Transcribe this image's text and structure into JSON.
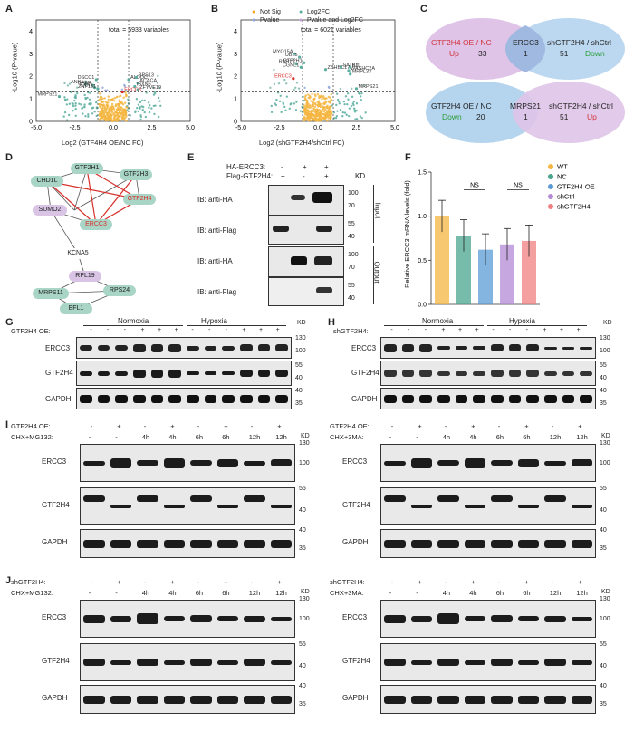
{
  "panels": {
    "A": {
      "label": "A",
      "total": "total = 5933 variables",
      "ylabel": "-Log10 (P-value)",
      "xlabel": "Log2 (GTF4H4 OE/NC FC)",
      "genes": [
        "DSCC1",
        "ANK1",
        "GFER",
        "EXN1",
        "ZNF131",
        "ALDOC",
        "RPS13",
        "ACACA",
        "IBXN6",
        "ZFYVE19",
        "ERCC3",
        "MRPS21"
      ]
    },
    "B": {
      "label": "B",
      "total": "total = 6021 variables",
      "ylabel": "-Log10 (P-value)",
      "xlabel": "Log2 (shGTF2H4/shCtrl FC)",
      "legend": [
        "Not Sig",
        "Pvalue",
        "Log2FC",
        "Pvalue and Log2FC"
      ],
      "genes": [
        "MYO15A",
        "UBL5",
        "GTF2H1",
        "RAB17",
        "CGNL1",
        "ZBHBC17",
        "SATB1",
        "ID1",
        "WASHC2A",
        "MRPL33",
        "ERCC3",
        "MRPS21"
      ]
    },
    "C": {
      "label": "C",
      "top": {
        "left_title": "GTF2H4 OE / NC",
        "left_dir": "Up",
        "left_n": "33",
        "mid": "ERCC3",
        "mid_n": "1",
        "right_title": "shGTF2H4 / shCtrl",
        "right_dir": "Down",
        "right_n": "51"
      },
      "bottom": {
        "left_title": "GTF2H4 OE / NC",
        "left_dir": "Down",
        "left_n": "20",
        "mid": "MRPS21",
        "mid_n": "1",
        "right_title": "shGTF2H4 / shCtrl",
        "right_dir": "Up",
        "right_n": "51"
      }
    },
    "D": {
      "label": "D",
      "nodes": [
        "GTF2H1",
        "GTF2H3",
        "CHD1L",
        "GTF2H4",
        "SUMO2",
        "ERCC3",
        "KCNA5",
        "RPL19",
        "MRPS11",
        "RPS24",
        "EFL1"
      ]
    },
    "E": {
      "label": "E",
      "row1": "HA-ERCC3:",
      "row2": "Flag-GTF2H4:",
      "row1_vals": [
        "-",
        "+",
        "+"
      ],
      "row2_vals": [
        "+",
        "-",
        "+"
      ],
      "kd": "KD",
      "blots": [
        "IB:  anti-HA",
        "IB:  anti-Flag",
        "IB:  anti-HA",
        "IB:  anti-Flag"
      ],
      "input": "Input",
      "output": "Output",
      "markers": [
        "100",
        "70",
        "55",
        "40",
        "100",
        "70",
        "55",
        "40"
      ]
    },
    "F": {
      "label": "F",
      "ylabel": "Relative ERCC3 mRNA levels (fold)",
      "ns": "NS"
    },
    "G": {
      "label": "G",
      "normoxia": "Normoxia",
      "hypoxia": "Hypoxia",
      "row": "GTF2H4 OE:",
      "vals": [
        "-",
        "-",
        "-",
        "+",
        "+",
        "+",
        "-",
        "-",
        "-",
        "+",
        "+",
        "+"
      ],
      "blots": [
        "ERCC3",
        "GTF2H4",
        "GAPDH"
      ],
      "kd": "KD",
      "markers": [
        "130",
        "100",
        "55",
        "40",
        "40",
        "35"
      ]
    },
    "H": {
      "label": "H",
      "normoxia": "Normoxia",
      "hypoxia": "Hypoxia",
      "row": "shGTF2H4:",
      "vals": [
        "-",
        "-",
        "-",
        "+",
        "+",
        "+",
        "-",
        "-",
        "-",
        "+",
        "+",
        "+"
      ],
      "blots": [
        "ERCC3",
        "GTF2H4",
        "GAPDH"
      ],
      "kd": "KD",
      "markers": [
        "130",
        "100",
        "55",
        "40",
        "40",
        "35"
      ]
    },
    "I": {
      "label": "I",
      "left": {
        "row1": "GTF2H4 OE:",
        "row2": "CHX+MG132:"
      },
      "right": {
        "row1": "GTF2H4 OE:",
        "row2": "CHX+3MA:"
      },
      "vals1": [
        "-",
        "+",
        "-",
        "+",
        "-",
        "+",
        "-",
        "+"
      ],
      "vals2": [
        "-",
        "-",
        "4h",
        "4h",
        "6h",
        "6h",
        "12h",
        "12h"
      ],
      "blots": [
        "ERCC3",
        "GTF2H4",
        "GAPDH"
      ],
      "kd": "KD",
      "markers": [
        "130",
        "100",
        "55",
        "40",
        "40",
        "35"
      ]
    },
    "J": {
      "label": "J",
      "left": {
        "row1": "shGTF2H4:",
        "row2": "CHX+MG132:"
      },
      "right": {
        "row1": "shGTF2H4:",
        "row2": "CHX+3MA:"
      },
      "vals1": [
        "-",
        "+",
        "-",
        "+",
        "-",
        "+",
        "-",
        "+"
      ],
      "vals2": [
        "-",
        "-",
        "4h",
        "4h",
        "6h",
        "6h",
        "12h",
        "12h"
      ],
      "blots": [
        "ERCC3",
        "GTF2H4",
        "GAPDH"
      ],
      "kd": "KD",
      "markers": [
        "130",
        "100",
        "55",
        "40",
        "40",
        "35"
      ]
    }
  },
  "chart_data": [
    {
      "panel": "A",
      "type": "scatter",
      "xlabel": "Log2 (GTF4H4 OE/NC FC)",
      "ylabel": "-Log10 (P-value)",
      "xlim": [
        -5.0,
        5.0
      ],
      "ylim": [
        0,
        4.5
      ],
      "xticks": [
        "-5.0",
        "-2.5",
        "0.0",
        "2.5",
        "5.0"
      ],
      "yticks": [
        "0",
        "1",
        "2",
        "3",
        "4"
      ],
      "series": [
        {
          "name": "labeled",
          "points": [
            [
              -1.1,
              1.85
            ],
            [
              -1.8,
              1.65
            ],
            [
              -1.3,
              1.6
            ],
            [
              -1.2,
              1.5
            ],
            [
              -1.0,
              1.45
            ],
            [
              1.0,
              1.85
            ],
            [
              1.5,
              1.95
            ],
            [
              1.6,
              1.7
            ],
            [
              1.4,
              1.55
            ],
            [
              1.6,
              1.4
            ],
            [
              0.6,
              1.3
            ],
            [
              -3.5,
              1.1
            ]
          ]
        }
      ]
    },
    {
      "panel": "B",
      "type": "scatter",
      "xlabel": "Log2 (shGTF2H4/shCtrl FC)",
      "ylabel": "-Log10 (P-value)",
      "xlim": [
        -5.0,
        5.0
      ],
      "ylim": [
        0,
        4.5
      ],
      "xticks": [
        "-5.0",
        "-2.5",
        "0.0",
        "2.5",
        "5.0"
      ],
      "yticks": [
        "0",
        "1",
        "2",
        "3",
        "4"
      ],
      "series": [
        {
          "name": "labeled",
          "points": [
            [
              -1.5,
              3.0
            ],
            [
              -1.2,
              2.85
            ],
            [
              -0.9,
              2.6
            ],
            [
              -1.4,
              2.55
            ],
            [
              -1.1,
              2.4
            ],
            [
              0.5,
              2.3
            ],
            [
              1.5,
              2.4
            ],
            [
              2.1,
              2.4
            ],
            [
              2.0,
              2.25
            ],
            [
              2.1,
              2.1
            ],
            [
              -1.6,
              1.9
            ],
            [
              2.5,
              1.45
            ]
          ]
        }
      ]
    },
    {
      "panel": "F",
      "type": "bar",
      "ylabel": "Relative ERCC3 mRNA levels (fold)",
      "ylim": [
        0,
        1.5
      ],
      "yticks": [
        "0.0",
        "0.5",
        "1.0",
        "1.5"
      ],
      "series": [
        {
          "name": "WT",
          "values": [
            1.0
          ],
          "color": "#f5b642"
        },
        {
          "name": "NC",
          "values": [
            0.78
          ],
          "color": "#4aa58f"
        },
        {
          "name": "GTF2H4 OE",
          "values": [
            0.62
          ],
          "color": "#5b9bd5"
        },
        {
          "name": "shCtrl",
          "values": [
            0.68
          ],
          "color": "#b48ad4"
        },
        {
          "name": "shGTF2H4",
          "values": [
            0.72
          ],
          "color": "#f08080"
        }
      ]
    }
  ]
}
